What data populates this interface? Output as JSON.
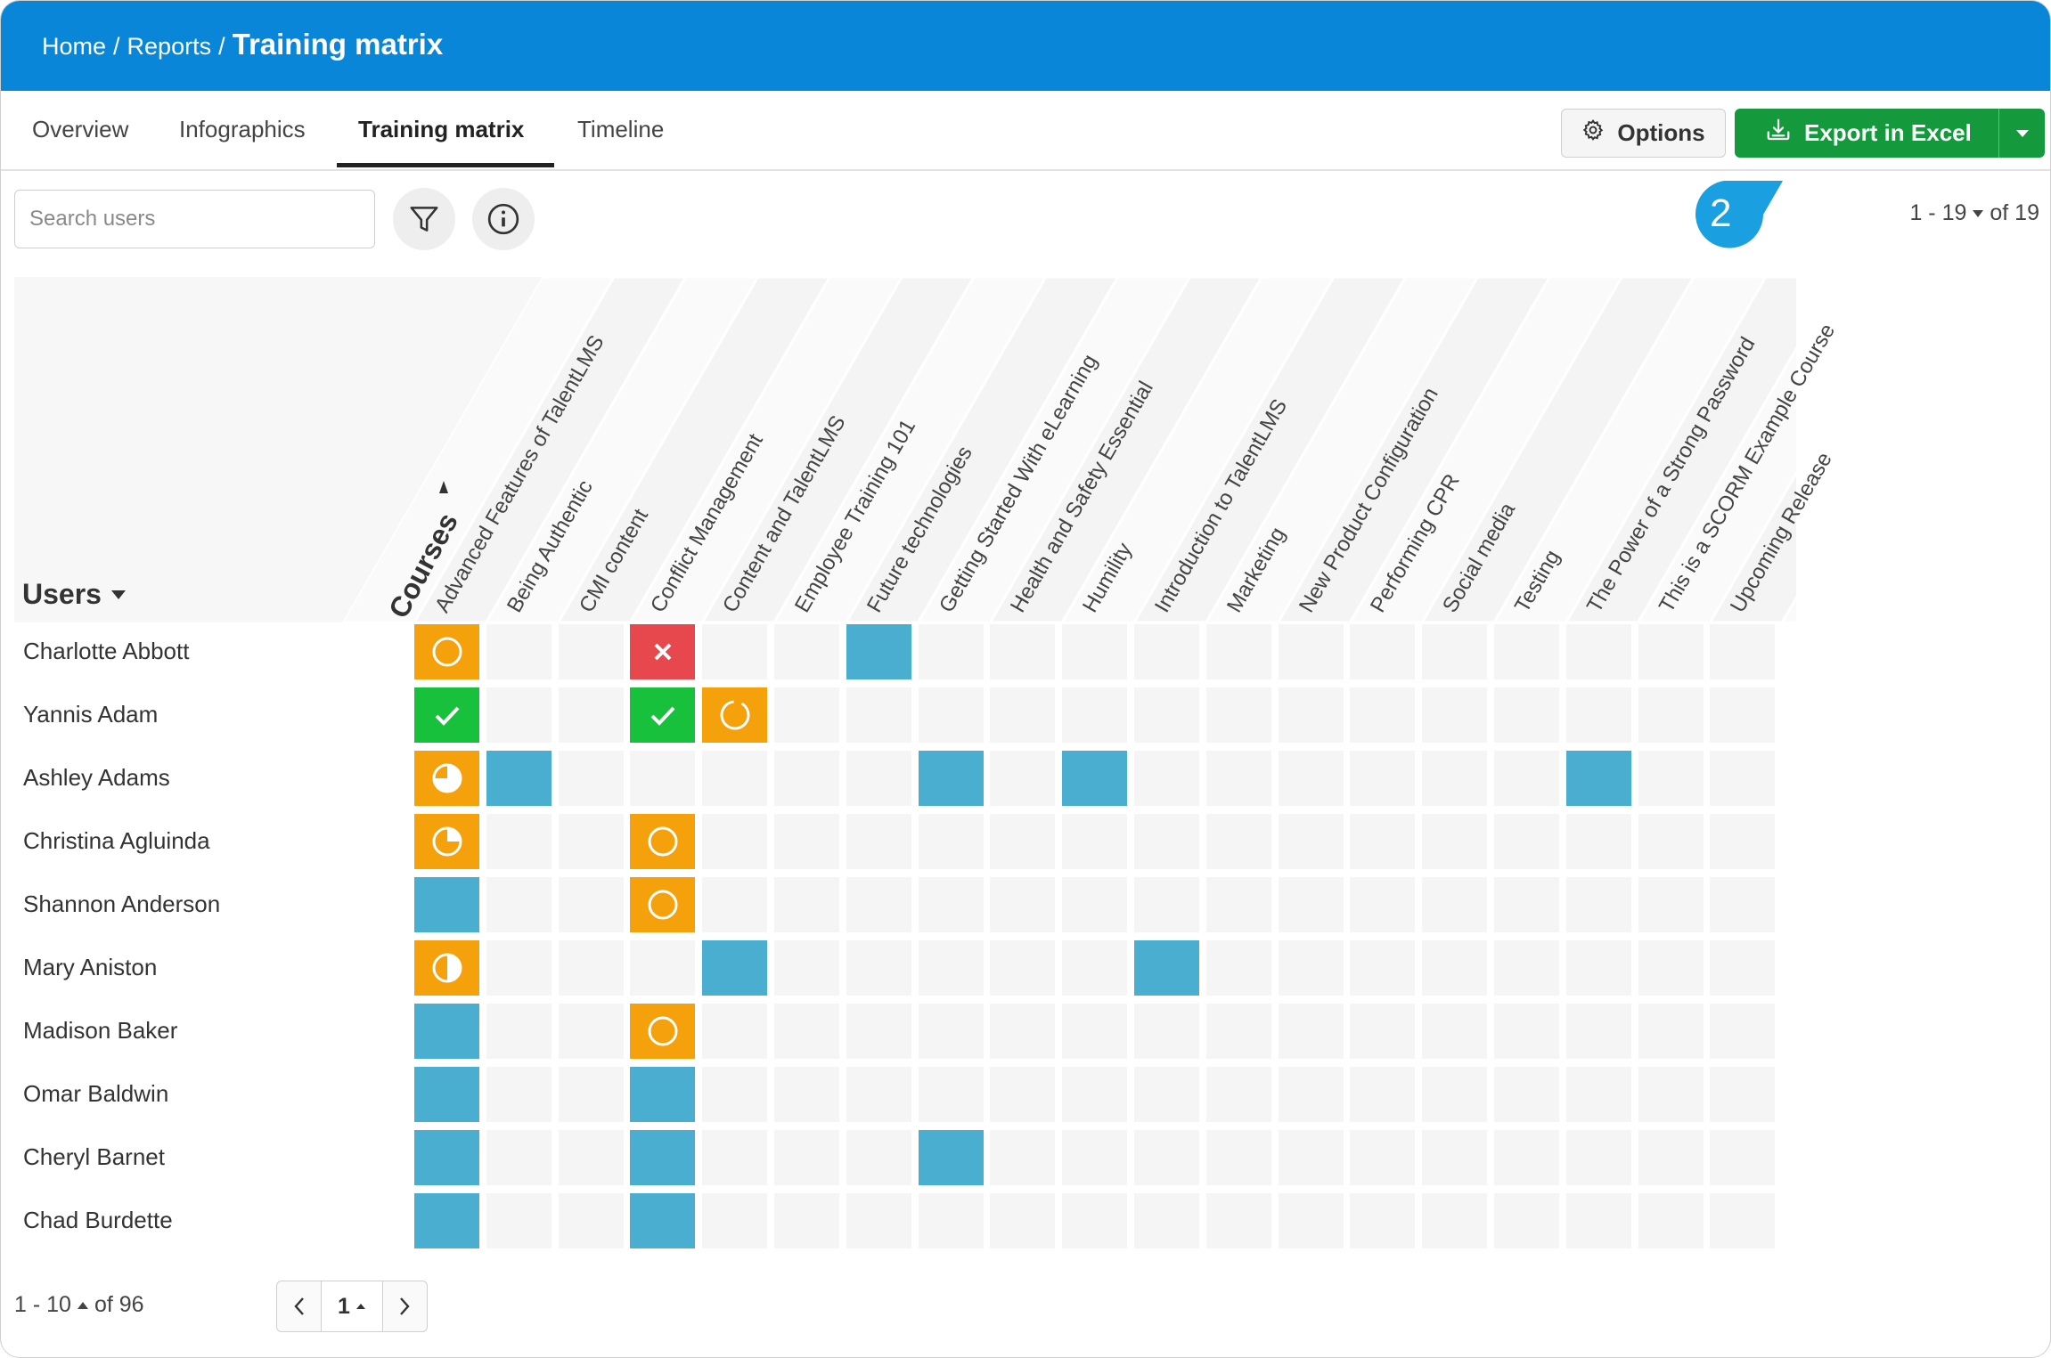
{
  "breadcrumb": {
    "home": "Home",
    "reports": "Reports",
    "current": "Training matrix",
    "separator": "/"
  },
  "tabs": [
    {
      "label": "Overview",
      "active": false
    },
    {
      "label": "Infographics",
      "active": false
    },
    {
      "label": "Training matrix",
      "active": true
    },
    {
      "label": "Timeline",
      "active": false
    }
  ],
  "toolbar": {
    "options_label": "Options",
    "export_label": "Export in Excel"
  },
  "search": {
    "placeholder": "Search users"
  },
  "annotation_badge": "2",
  "pagination_top": {
    "range": "1 - 19",
    "of": "of 19"
  },
  "matrix": {
    "users_header": "Users",
    "courses_header": "Courses",
    "courses": [
      "Advanced Features of TalentLMS",
      "Being Authentic",
      "CMI content",
      "Conflict Management",
      "Content and TalentLMS",
      "Employee Training 101",
      "Future technologies",
      "Getting Started With eLearning",
      "Health and Safety Essential",
      "Humility",
      "Introduction to TalentLMS",
      "Marketing",
      "New Product Configuration",
      "Performing CPR",
      "Social media",
      "Testing",
      "The Power of a Strong Password",
      "This is a SCORM Example Course",
      "Upcoming Release"
    ],
    "users": [
      "Charlotte Abbott",
      "Yannis Adam",
      "Ashley Adams",
      "Christina Agluinda",
      "Shannon Anderson",
      "Mary Aniston",
      "Madison Baker",
      "Omar Baldwin",
      "Cheryl Barnet",
      "Chad Burdette"
    ],
    "status_colors": {
      "not_started": "#4aaed0",
      "in_progress": "#f5a10c",
      "completed": "#18c13c",
      "failed": "#e6484d",
      "not_enrolled": "#f5f5f5"
    },
    "cells": [
      [
        [
          "in_progress",
          0
        ],
        "none",
        "none",
        [
          "failed"
        ],
        "none",
        "none",
        [
          "not_started"
        ],
        "none",
        "none",
        "none",
        "none",
        "none",
        "none",
        "none",
        "none",
        "none",
        "none",
        "none",
        "none"
      ],
      [
        [
          "completed"
        ],
        "none",
        "none",
        [
          "completed"
        ],
        [
          "in_progress",
          0.9
        ],
        "none",
        "none",
        "none",
        "none",
        "none",
        "none",
        "none",
        "none",
        "none",
        "none",
        "none",
        "none",
        "none",
        "none"
      ],
      [
        [
          "in_progress",
          0.75
        ],
        [
          "not_started"
        ],
        "none",
        "none",
        "none",
        "none",
        "none",
        [
          "not_started"
        ],
        "none",
        [
          "not_started"
        ],
        "none",
        "none",
        "none",
        "none",
        "none",
        "none",
        [
          "not_started"
        ],
        "none",
        "none"
      ],
      [
        [
          "in_progress",
          0.25
        ],
        "none",
        "none",
        [
          "in_progress",
          0
        ],
        "none",
        "none",
        "none",
        "none",
        "none",
        "none",
        "none",
        "none",
        "none",
        "none",
        "none",
        "none",
        "none",
        "none",
        "none"
      ],
      [
        [
          "not_started"
        ],
        "none",
        "none",
        [
          "in_progress",
          0
        ],
        "none",
        "none",
        "none",
        "none",
        "none",
        "none",
        "none",
        "none",
        "none",
        "none",
        "none",
        "none",
        "none",
        "none",
        "none"
      ],
      [
        [
          "in_progress",
          0.5
        ],
        "none",
        "none",
        "none",
        [
          "not_started"
        ],
        "none",
        "none",
        "none",
        "none",
        "none",
        [
          "not_started"
        ],
        "none",
        "none",
        "none",
        "none",
        "none",
        "none",
        "none",
        "none"
      ],
      [
        [
          "not_started"
        ],
        "none",
        "none",
        [
          "in_progress",
          0
        ],
        "none",
        "none",
        "none",
        "none",
        "none",
        "none",
        "none",
        "none",
        "none",
        "none",
        "none",
        "none",
        "none",
        "none",
        "none"
      ],
      [
        [
          "not_started"
        ],
        "none",
        "none",
        [
          "not_started"
        ],
        "none",
        "none",
        "none",
        "none",
        "none",
        "none",
        "none",
        "none",
        "none",
        "none",
        "none",
        "none",
        "none",
        "none",
        "none"
      ],
      [
        [
          "not_started"
        ],
        "none",
        "none",
        [
          "not_started"
        ],
        "none",
        "none",
        "none",
        [
          "not_started"
        ],
        "none",
        "none",
        "none",
        "none",
        "none",
        "none",
        "none",
        "none",
        "none",
        "none",
        "none"
      ],
      [
        [
          "not_started"
        ],
        "none",
        "none",
        [
          "not_started"
        ],
        "none",
        "none",
        "none",
        "none",
        "none",
        "none",
        "none",
        "none",
        "none",
        "none",
        "none",
        "none",
        "none",
        "none",
        "none"
      ]
    ]
  },
  "pagination_bottom": {
    "range": "1 - 10",
    "of": "of 96",
    "page": "1"
  },
  "colors": {
    "header_blue": "#0a86d8",
    "export_green": "#149a3c",
    "badge_blue": "#1a9fe0"
  },
  "icons": {
    "options": "gear-icon",
    "export": "download-tray-icon",
    "filter": "funnel-icon",
    "info": "info-icon"
  }
}
